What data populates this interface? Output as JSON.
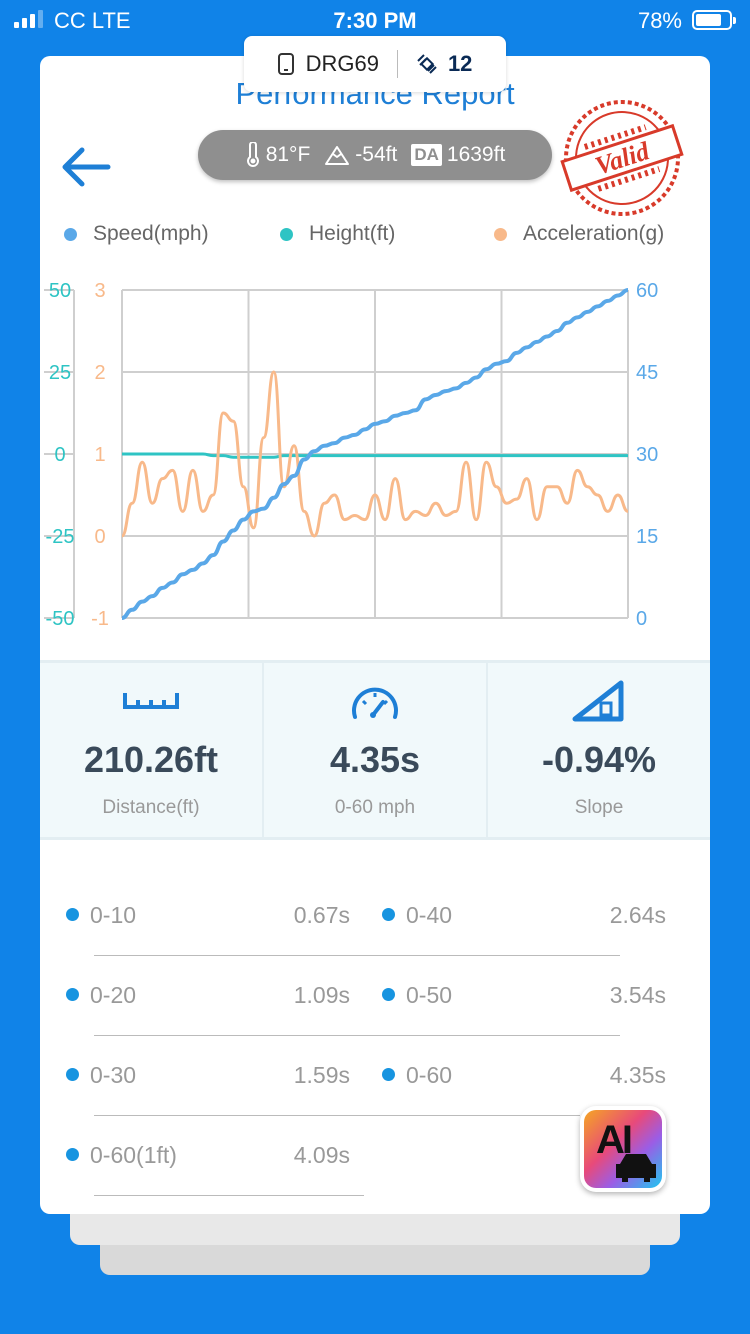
{
  "status_bar": {
    "carrier": "CC  LTE",
    "time": "7:30 PM",
    "battery_pct": "78%",
    "battery_level": 0.78,
    "signal_bars": 3
  },
  "device": {
    "name": "DRG69",
    "satellites": "12",
    "icons": [
      "phone-icon",
      "satellite-icon"
    ]
  },
  "header": {
    "title": "Performance Report",
    "back_icon": "arrow-left-icon",
    "stamp_text": "Valid"
  },
  "conditions": {
    "temperature": "81°F",
    "altitude": "-54ft",
    "da_label": "DA",
    "density_altitude": "1639ft"
  },
  "legend": [
    {
      "label": "Speed(mph)",
      "color": "#5AA8E8"
    },
    {
      "label": "Height(ft)",
      "color": "#2EC4C4"
    },
    {
      "label": "Acceleration(g)",
      "color": "#F8B98A"
    }
  ],
  "chart_data": {
    "type": "line",
    "x": [
      0,
      0.02,
      0.04,
      0.06,
      0.08,
      0.1,
      0.12,
      0.14,
      0.16,
      0.18,
      0.2,
      0.22,
      0.24,
      0.26,
      0.28,
      0.3,
      0.32,
      0.34,
      0.36,
      0.38,
      0.4,
      0.42,
      0.44,
      0.46,
      0.48,
      0.5,
      0.52,
      0.54,
      0.56,
      0.58,
      0.6,
      0.62,
      0.64,
      0.66,
      0.68,
      0.7,
      0.72,
      0.74,
      0.76,
      0.78,
      0.8,
      0.82,
      0.84,
      0.86,
      0.88,
      0.9,
      0.92,
      0.94,
      0.96,
      0.98,
      1.0
    ],
    "series": [
      {
        "name": "Speed(mph)",
        "axis": "right",
        "color": "#5AA8E8",
        "values": [
          0,
          1.5,
          3,
          4,
          5.5,
          6.5,
          8,
          8.8,
          10,
          11.5,
          14,
          16,
          18,
          19.5,
          20,
          22,
          24.5,
          26,
          29,
          30.5,
          31.5,
          32,
          33,
          33.5,
          34.5,
          35.5,
          36,
          37,
          37.5,
          38,
          40,
          40.8,
          41.5,
          42,
          43,
          44,
          45.5,
          46.5,
          47,
          48.5,
          49.5,
          50.5,
          51.5,
          52.5,
          54,
          55,
          56,
          57,
          58,
          59,
          60
        ]
      },
      {
        "name": "Height(ft)",
        "axis": "left-teal",
        "color": "#2EC4C4",
        "values": [
          0,
          0,
          0,
          0,
          0,
          0,
          0,
          0,
          0,
          -0.5,
          -0.5,
          -1,
          -1,
          -1,
          -1,
          -1,
          -0.5,
          -0.5,
          -0.5,
          -0.5,
          -0.5,
          -0.5,
          -0.5,
          -0.5,
          -0.5,
          -0.5,
          -0.5,
          -0.5,
          -0.5,
          -0.5,
          -0.5,
          -0.5,
          -0.5,
          -0.5,
          -0.5,
          -0.5,
          -0.5,
          -0.5,
          -0.5,
          -0.5,
          -0.5,
          -0.5,
          -0.5,
          -0.5,
          -0.5,
          -0.5,
          -0.5,
          -0.5,
          -0.5,
          -0.5,
          -0.5
        ]
      },
      {
        "name": "Acceleration(g)",
        "axis": "left-orange",
        "color": "#F8B98A",
        "values": [
          0,
          0.4,
          0.9,
          0.4,
          0.7,
          0.8,
          0.3,
          0.8,
          0.3,
          0.5,
          1.5,
          1.4,
          0.6,
          0.1,
          1.2,
          2.0,
          0.6,
          1.1,
          0.3,
          0,
          0.4,
          0.5,
          0.2,
          0.25,
          0.2,
          0.5,
          0.2,
          0.7,
          0.2,
          0.3,
          0.25,
          0.4,
          0.25,
          0.3,
          0.9,
          0.2,
          0.9,
          0.6,
          0.4,
          0.45,
          0.7,
          0.2,
          0.6,
          0.6,
          0.4,
          0.8,
          0.6,
          0.5,
          0.3,
          0.5,
          0.3
        ]
      }
    ],
    "y_left_teal": {
      "ticks": [
        "50",
        "25",
        "0",
        "-25",
        "-50"
      ],
      "range": [
        -50,
        50
      ]
    },
    "y_left_orange": {
      "ticks": [
        "3",
        "2",
        "1",
        "0",
        "-1"
      ],
      "range": [
        -1,
        3
      ]
    },
    "y_right": {
      "ticks": [
        "60",
        "45",
        "30",
        "15",
        "0"
      ],
      "range": [
        0,
        60
      ]
    },
    "grid": true
  },
  "stats": [
    {
      "icon": "ruler-icon",
      "value": "210.26ft",
      "label": "Distance(ft)"
    },
    {
      "icon": "speedometer-icon",
      "value": "4.35s",
      "label": "0-60 mph"
    },
    {
      "icon": "slope-icon",
      "value": "-0.94%",
      "label": "Slope"
    }
  ],
  "splits": [
    {
      "name": "0-10",
      "time": "0.67s"
    },
    {
      "name": "0-40",
      "time": "2.64s"
    },
    {
      "name": "0-20",
      "time": "1.09s"
    },
    {
      "name": "0-50",
      "time": "3.54s"
    },
    {
      "name": "0-30",
      "time": "1.59s"
    },
    {
      "name": "0-60",
      "time": "4.35s"
    },
    {
      "name": "0-60(1ft)",
      "time": "4.09s"
    }
  ],
  "ai_badge": {
    "text": "AI",
    "icon": "car-icon"
  }
}
